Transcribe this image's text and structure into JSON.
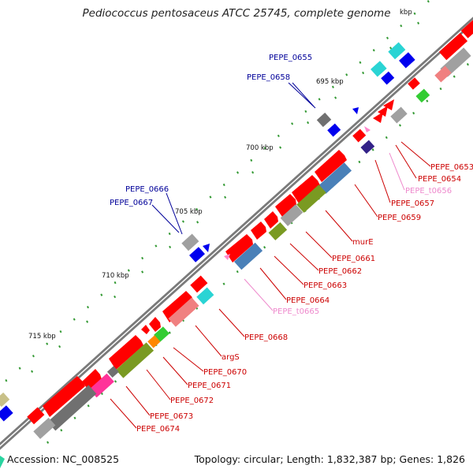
{
  "title": "Pediococcus pentosaceus ATCC 25745, complete genome",
  "footer": {
    "accession": "Accession: NC_008525",
    "summary": "Topology: circular; Length: 1,832,387 bp; Genes: 1,826"
  },
  "colors": {
    "backbone": "#7a7a7a",
    "tick": "#339933",
    "gene_red": "#ff0000",
    "gene_pink": "#f08080",
    "gene_grey": "#a0a0a0",
    "gene_darkgrey": "#707070",
    "gene_olive": "#7a9a22",
    "gene_steel": "#4a80b8",
    "gene_cyan": "#2ad4d4",
    "gene_blue": "#0000ee",
    "gene_green": "#33cc33",
    "gene_magenta": "#ff3399",
    "gene_orange": "#ff8800",
    "gene_navy": "#332288",
    "gene_khaki": "#c8c088",
    "label_red": "#cc0000",
    "label_pink": "#ee88cc",
    "label_blue": "#000099"
  },
  "kbp_labels": [
    "695 kbp",
    "700 kbp",
    "705 kbp",
    "710 kbp",
    "715 kbp",
    "kbp"
  ],
  "gene_labels": [
    {
      "text": "PEPE_0653",
      "color": "red"
    },
    {
      "text": "PEPE_0654",
      "color": "red"
    },
    {
      "text": "PEPE_t0656",
      "color": "pink"
    },
    {
      "text": "PEPE_0657",
      "color": "red"
    },
    {
      "text": "PEPE_0659",
      "color": "red"
    },
    {
      "text": "murE",
      "color": "red"
    },
    {
      "text": "PEPE_0661",
      "color": "red"
    },
    {
      "text": "PEPE_0662",
      "color": "red"
    },
    {
      "text": "PEPE_0663",
      "color": "red"
    },
    {
      "text": "PEPE_0664",
      "color": "red"
    },
    {
      "text": "PEPE_t0665",
      "color": "pink"
    },
    {
      "text": "PEPE_0668",
      "color": "red"
    },
    {
      "text": "argS",
      "color": "red"
    },
    {
      "text": "PEPE_0670",
      "color": "red"
    },
    {
      "text": "PEPE_0671",
      "color": "red"
    },
    {
      "text": "PEPE_0672",
      "color": "red"
    },
    {
      "text": "PEPE_0673",
      "color": "red"
    },
    {
      "text": "PEPE_0674",
      "color": "red"
    },
    {
      "text": "PEPE_0655",
      "color": "blue"
    },
    {
      "text": "PEPE_0658",
      "color": "blue"
    },
    {
      "text": "PEPE_0666",
      "color": "blue"
    },
    {
      "text": "PEPE_0667",
      "color": "blue"
    }
  ]
}
